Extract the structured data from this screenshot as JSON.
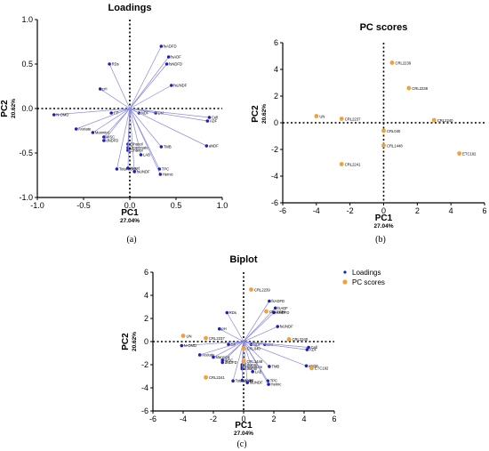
{
  "chart_data": [
    {
      "type": "scatter",
      "panel": "(a)",
      "title": "Loadings",
      "xlabel": "PC1",
      "xsub": "27.04%",
      "ylabel": "PC2",
      "ysub": "20.62%",
      "xlim": [
        -1.0,
        1.0
      ],
      "ylim": [
        -1.0,
        1.0
      ],
      "xticks": [
        "-1.0",
        "-0.5",
        "0.0",
        "0.5",
        "1.0"
      ],
      "yticks": [
        "1.0",
        "0.5",
        "0.0",
        "-0.5",
        "-1.0"
      ],
      "grid": false,
      "series": [
        {
          "points": [
            {
              "label": "fsADFD",
              "x": 0.34,
              "y": 0.7
            },
            {
              "label": "fsADF",
              "x": 0.42,
              "y": 0.58
            },
            {
              "label": "fsNDFD",
              "x": 0.4,
              "y": 0.5
            },
            {
              "label": "RDs",
              "x": -0.22,
              "y": 0.5
            },
            {
              "label": "fsUNDF",
              "x": 0.45,
              "y": 0.26
            },
            {
              "label": "pH",
              "x": -0.32,
              "y": 0.22
            },
            {
              "label": "N-OMD",
              "x": -0.82,
              "y": -0.07
            },
            {
              "label": "CP",
              "x": -0.2,
              "y": -0.05
            },
            {
              "label": "NDF",
              "x": 0.1,
              "y": -0.05
            },
            {
              "label": "DM",
              "x": 0.28,
              "y": -0.05
            },
            {
              "label": "Cell",
              "x": 0.86,
              "y": -0.1
            },
            {
              "label": "ADF",
              "x": 0.84,
              "y": -0.14
            },
            {
              "label": "Acetate",
              "x": -0.58,
              "y": -0.23
            },
            {
              "label": "Mannitol",
              "x": -0.4,
              "y": -0.27
            },
            {
              "label": "WSC",
              "x": -0.28,
              "y": -0.32
            },
            {
              "label": "dNDFD",
              "x": -0.28,
              "y": -0.36
            },
            {
              "label": "Ethanol",
              "x": -0.02,
              "y": -0.4
            },
            {
              "label": "Propionate",
              "x": -0.02,
              "y": -0.44
            },
            {
              "label": "Ethanol",
              "x": -0.02,
              "y": -0.47
            },
            {
              "label": "LAB",
              "x": 0.12,
              "y": -0.52
            },
            {
              "label": "TMB",
              "x": 0.34,
              "y": -0.43
            },
            {
              "label": "aNDF",
              "x": 0.83,
              "y": -0.42
            },
            {
              "label": "Total acids",
              "x": -0.14,
              "y": -0.68
            },
            {
              "label": "Yeast",
              "x": -0.02,
              "y": -0.67
            },
            {
              "label": "fsUNDF",
              "x": 0.05,
              "y": -0.71
            },
            {
              "label": "TPC",
              "x": 0.32,
              "y": -0.68
            },
            {
              "label": "Hemic",
              "x": 0.33,
              "y": -0.74
            }
          ]
        }
      ]
    },
    {
      "type": "scatter",
      "panel": "(b)",
      "title": "PC scores",
      "xlabel": "PC1",
      "xsub": "27.04%",
      "ylabel": "PC2",
      "ysub": "20.62%",
      "xlim": [
        -6,
        6
      ],
      "ylim": [
        -6,
        6
      ],
      "xticks": [
        "-6",
        "-4",
        "-2",
        "0",
        "2",
        "4",
        "6"
      ],
      "yticks": [
        "6",
        "4",
        "2",
        "0",
        "-2",
        "-4",
        "-6"
      ],
      "grid": false,
      "series": [
        {
          "points": [
            {
              "label": "CRL2239",
              "x": 0.5,
              "y": 4.5
            },
            {
              "label": "CRL2238",
              "x": 1.5,
              "y": 2.6
            },
            {
              "label": "UN",
              "x": -4.0,
              "y": 0.5
            },
            {
              "label": "CRL2237",
              "x": -2.5,
              "y": 0.3
            },
            {
              "label": "CRL2240",
              "x": 3.0,
              "y": 0.2
            },
            {
              "label": "CRL040",
              "x": 0.0,
              "y": -0.6
            },
            {
              "label": "CRL1448",
              "x": 0.0,
              "y": -1.7
            },
            {
              "label": "ETC192",
              "x": 4.5,
              "y": -2.3
            },
            {
              "label": "CRL2241",
              "x": -2.5,
              "y": -3.1
            }
          ]
        }
      ]
    },
    {
      "type": "scatter",
      "panel": "(c)",
      "title": "Biplot",
      "xlabel": "PC1",
      "xsub": "27.04%",
      "ylabel": "PC2",
      "ysub": "20.62%",
      "xlim": [
        -6,
        6
      ],
      "ylim": [
        -6,
        6
      ],
      "xticks": [
        "-6",
        "-4",
        "-2",
        "0",
        "2",
        "4",
        "6"
      ],
      "yticks": [
        "6",
        "4",
        "2",
        "0",
        "-2",
        "-4",
        "-6"
      ],
      "grid": false,
      "legend_position": "top-right",
      "series": [
        {
          "name": "Loadings",
          "scale": 5.0,
          "points_ref": "chart_data.0"
        },
        {
          "name": "PC scores",
          "points_ref": "chart_data.1"
        }
      ]
    }
  ],
  "colors": {
    "loading": "#1f1fb8",
    "loading_line": "#8a8ae0",
    "score": "#f2a03a",
    "axis": "#000000"
  }
}
